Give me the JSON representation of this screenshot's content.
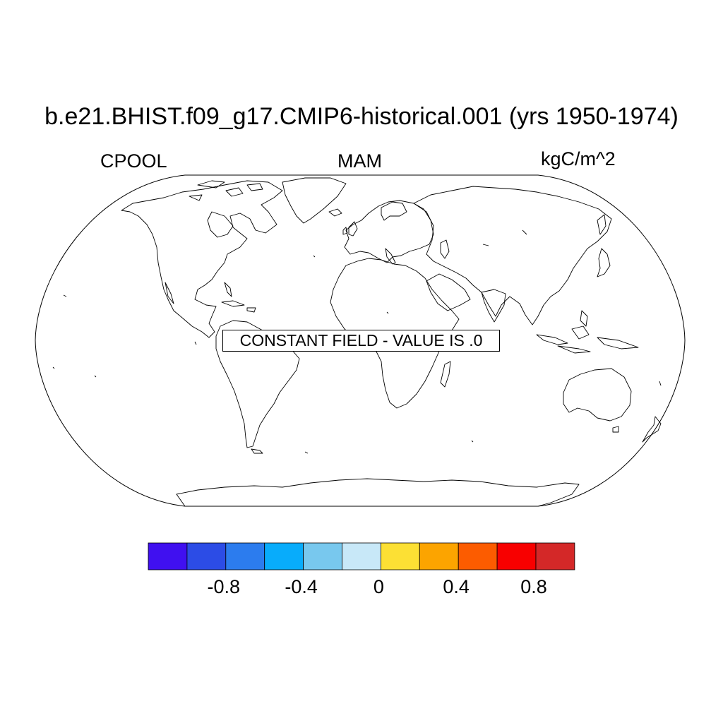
{
  "title": "b.e21.BHIST.f09_g17.CMIP6-historical.001 (yrs 1950-1974)",
  "left_label": "CPOOL",
  "center_label": "MAM",
  "right_label": "kgC/m^2",
  "annotation": "CONSTANT FIELD - VALUE IS .0",
  "colorbar": {
    "colors": [
      "#4010F0",
      "#2C4CE6",
      "#2C7CEE",
      "#08ACFB",
      "#78C8EE",
      "#C8E8F8",
      "#FCE034",
      "#FCA400",
      "#FC5C00",
      "#F80000",
      "#D42828"
    ],
    "tick_labels": [
      "-0.8",
      "-0.4",
      "0",
      "0.4",
      "0.8"
    ]
  }
}
